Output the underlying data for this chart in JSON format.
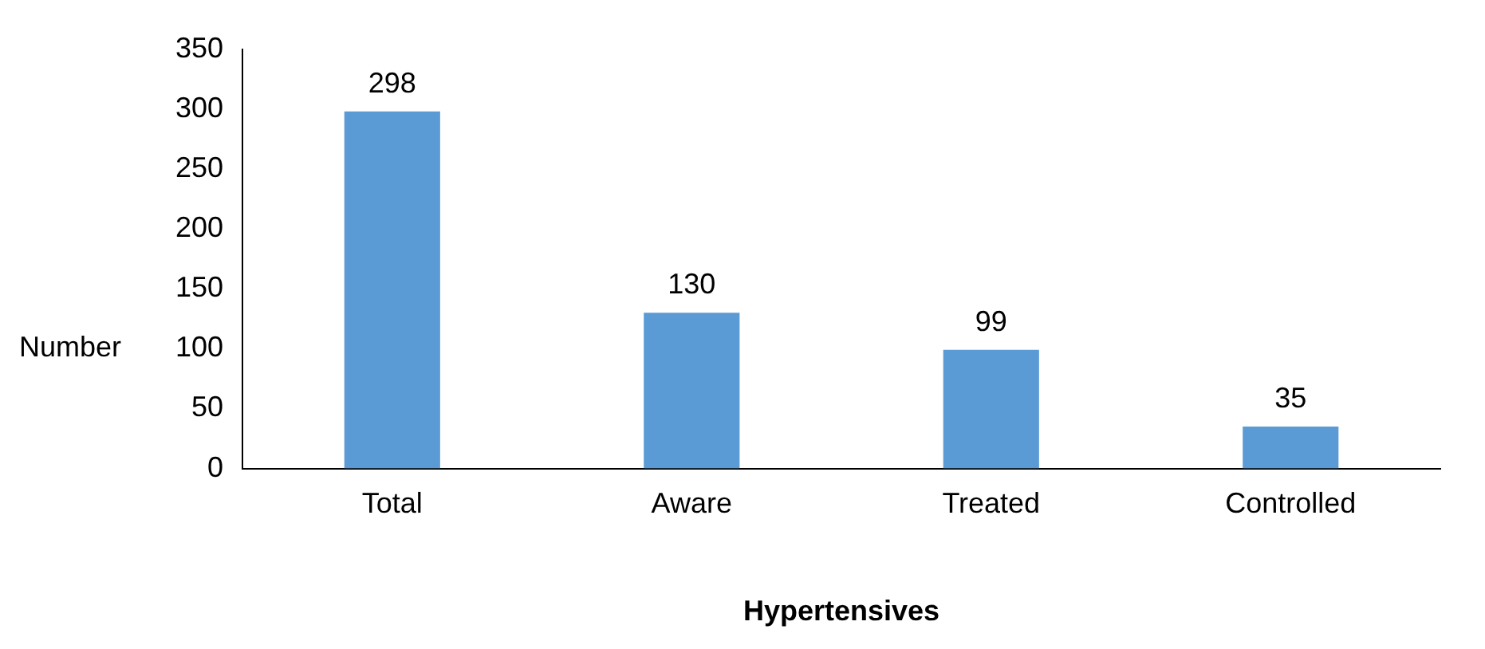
{
  "chart_data": {
    "type": "bar",
    "xlabel": "Hypertensives",
    "ylabel": "Number",
    "categories": [
      "Total",
      "Aware",
      "Treated",
      "Controlled"
    ],
    "values": [
      298,
      130,
      99,
      35
    ],
    "color": "#5b9bd5",
    "ylim": [
      0,
      350
    ],
    "yticks": [
      0,
      50,
      100,
      150,
      200,
      250,
      300,
      350
    ],
    "data_labels": true,
    "grid": false,
    "legend": false
  }
}
